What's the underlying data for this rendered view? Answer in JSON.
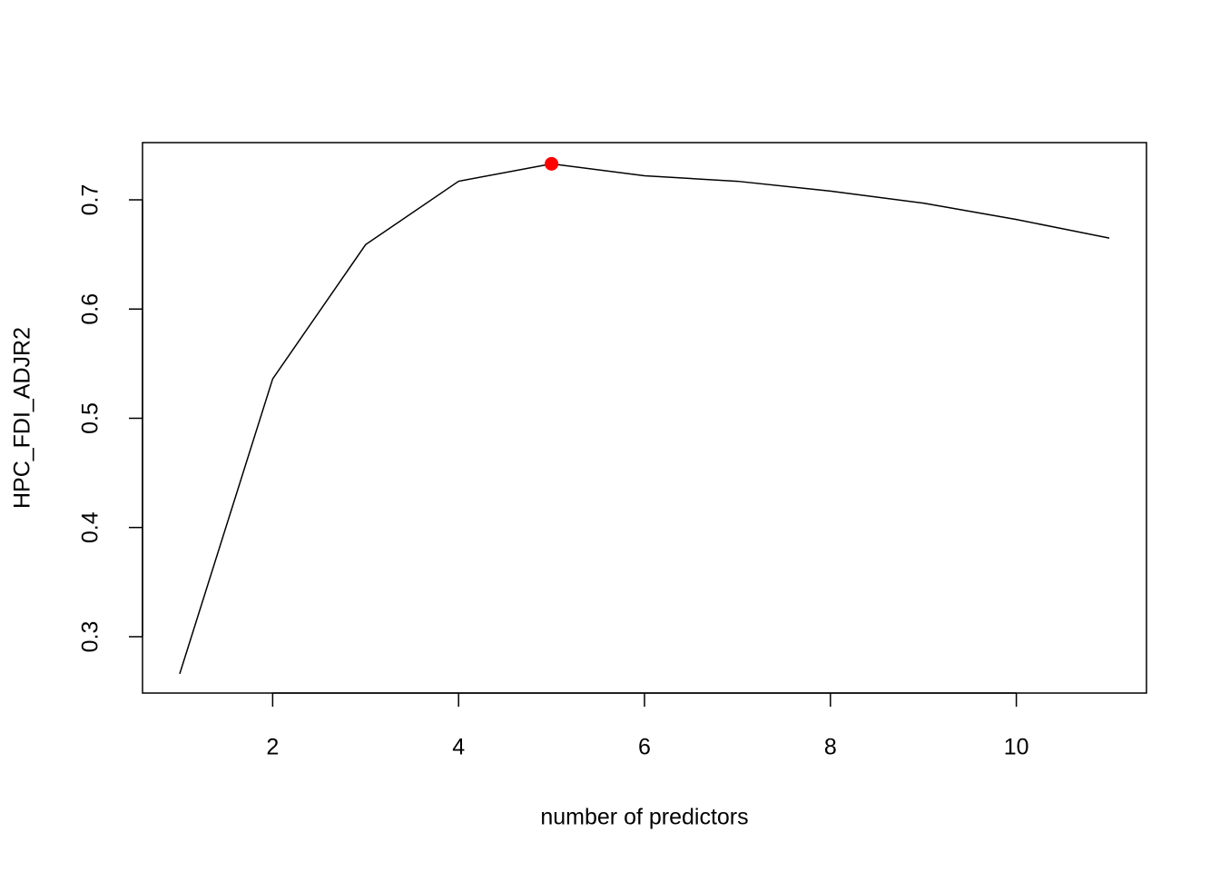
{
  "chart_data": {
    "type": "line",
    "x_label": "number of predictors",
    "y_label": "HPC_FDI_ADJR2",
    "x": [
      1,
      2,
      3,
      4,
      5,
      6,
      7,
      8,
      9,
      10,
      11
    ],
    "series": [
      {
        "color": "#000000",
        "values": [
          0.266,
          0.536,
          0.659,
          0.717,
          0.733,
          0.722,
          0.717,
          0.708,
          0.697,
          0.682,
          0.665
        ]
      }
    ],
    "highlight_index": 4,
    "highlight_color": "#ff0000",
    "xlim": [
      0.6,
      11.4
    ],
    "xticks": [
      2,
      4,
      6,
      8,
      10
    ],
    "ylim": [
      0.2484,
      0.7524
    ],
    "yticks": [
      0.3,
      0.4,
      0.5,
      0.6,
      0.7
    ]
  }
}
